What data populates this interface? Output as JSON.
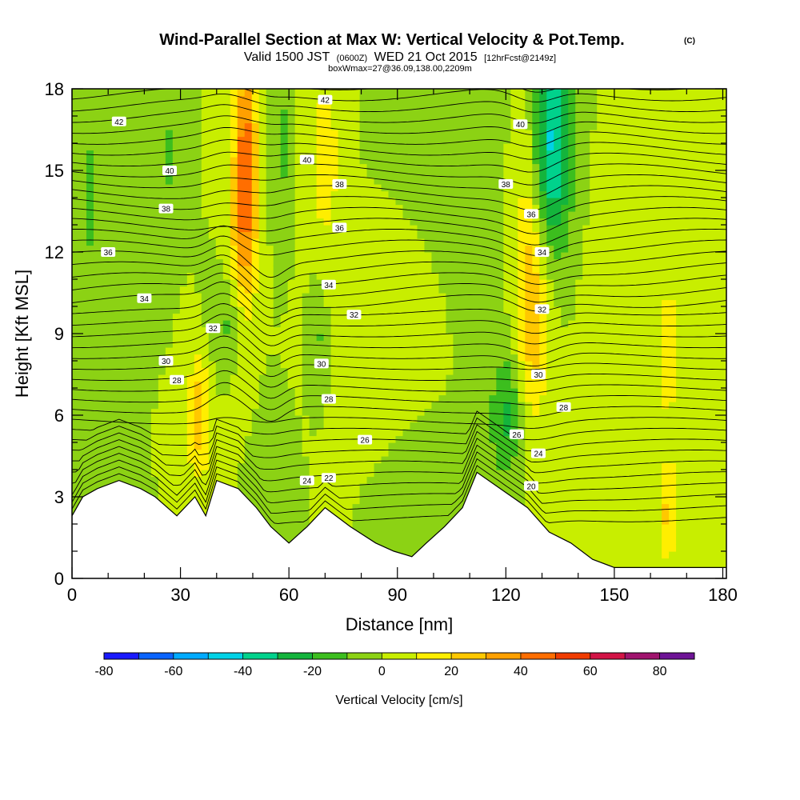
{
  "header": {
    "title": "Wind-Parallel Section at Max W: Vertical Velocity & Pot.Temp.",
    "copyright": "(C)",
    "valid_a": "Valid 1500 JST",
    "valid_z": "(0600Z)",
    "valid_b": "WED 21 Oct 2015",
    "forecast": "[12hrFcst@2149z]",
    "box": "boxWmax=27@36.09,138.00,2209m"
  },
  "chart_data": {
    "type": "heatmap",
    "xlabel": "Distance [nm]",
    "ylabel": "Height [Kft MSL]",
    "xlim": [
      0,
      181
    ],
    "ylim": [
      0,
      18
    ],
    "x_ticks": [
      "0",
      "30",
      "60",
      "90",
      "120",
      "150",
      "180"
    ],
    "y_ticks": [
      "0",
      "3",
      "6",
      "9",
      "12",
      "15",
      "18"
    ],
    "colorbar": {
      "title": "Vertical Velocity [cm/s]",
      "tick_labels": [
        "-80",
        "-60",
        "-40",
        "-20",
        "0",
        "20",
        "40",
        "60",
        "80"
      ],
      "levels": [
        -80,
        -70,
        -60,
        -50,
        -40,
        -30,
        -20,
        -10,
        0,
        10,
        20,
        30,
        40,
        50,
        60,
        70,
        80
      ],
      "colors": [
        "#1a1aff",
        "#0a64ff",
        "#00aaff",
        "#00d2e6",
        "#00d28c",
        "#14b43c",
        "#3cbe1e",
        "#8cd214",
        "#c8ee00",
        "#ffee00",
        "#ffc800",
        "#ffa000",
        "#ff6e00",
        "#f03c00",
        "#d21446",
        "#a0146e",
        "#6e1496"
      ]
    },
    "terrain": [
      [
        0,
        2.3
      ],
      [
        3,
        3.0
      ],
      [
        7,
        3.3
      ],
      [
        13,
        3.6
      ],
      [
        19,
        3.3
      ],
      [
        23,
        3.0
      ],
      [
        29,
        2.3
      ],
      [
        34,
        3.0
      ],
      [
        37,
        2.3
      ],
      [
        40,
        3.6
      ],
      [
        46,
        3.3
      ],
      [
        51,
        2.6
      ],
      [
        55,
        1.9
      ],
      [
        60,
        1.3
      ],
      [
        65,
        1.9
      ],
      [
        70,
        2.6
      ],
      [
        77,
        1.9
      ],
      [
        84,
        1.3
      ],
      [
        89,
        1.0
      ],
      [
        94,
        0.8
      ],
      [
        98,
        1.3
      ],
      [
        103,
        1.9
      ],
      [
        108,
        2.6
      ],
      [
        112,
        3.9
      ],
      [
        126,
        2.6
      ],
      [
        132,
        1.7
      ],
      [
        138,
        1.3
      ],
      [
        144,
        0.7
      ],
      [
        150,
        0.4
      ],
      [
        181,
        0.4
      ]
    ],
    "theta_labels": [
      {
        "text": "42",
        "x": 13,
        "y": 16.8
      },
      {
        "text": "40",
        "x": 27,
        "y": 15.0
      },
      {
        "text": "38",
        "x": 26,
        "y": 13.6
      },
      {
        "text": "36",
        "x": 10,
        "y": 12.0
      },
      {
        "text": "34",
        "x": 20,
        "y": 10.3
      },
      {
        "text": "32",
        "x": 39,
        "y": 9.2
      },
      {
        "text": "30",
        "x": 26,
        "y": 8.0
      },
      {
        "text": "28",
        "x": 29,
        "y": 7.3
      },
      {
        "text": "42",
        "x": 70,
        "y": 17.6
      },
      {
        "text": "40",
        "x": 65,
        "y": 15.4
      },
      {
        "text": "38",
        "x": 74,
        "y": 14.5
      },
      {
        "text": "36",
        "x": 74,
        "y": 12.9
      },
      {
        "text": "34",
        "x": 71,
        "y": 10.8
      },
      {
        "text": "32",
        "x": 78,
        "y": 9.7
      },
      {
        "text": "30",
        "x": 69,
        "y": 7.9
      },
      {
        "text": "28",
        "x": 71,
        "y": 6.6
      },
      {
        "text": "26",
        "x": 81,
        "y": 5.1
      },
      {
        "text": "24",
        "x": 65,
        "y": 3.6
      },
      {
        "text": "22",
        "x": 71,
        "y": 3.7
      },
      {
        "text": "40",
        "x": 124,
        "y": 16.7
      },
      {
        "text": "38",
        "x": 120,
        "y": 14.5
      },
      {
        "text": "36",
        "x": 127,
        "y": 13.4
      },
      {
        "text": "34",
        "x": 130,
        "y": 12.0
      },
      {
        "text": "32",
        "x": 130,
        "y": 9.9
      },
      {
        "text": "30",
        "x": 129,
        "y": 7.5
      },
      {
        "text": "28",
        "x": 136,
        "y": 6.3
      },
      {
        "text": "26",
        "x": 123,
        "y": 5.3
      },
      {
        "text": "24",
        "x": 129,
        "y": 4.6
      },
      {
        "text": "20",
        "x": 127,
        "y": 3.4
      }
    ]
  }
}
